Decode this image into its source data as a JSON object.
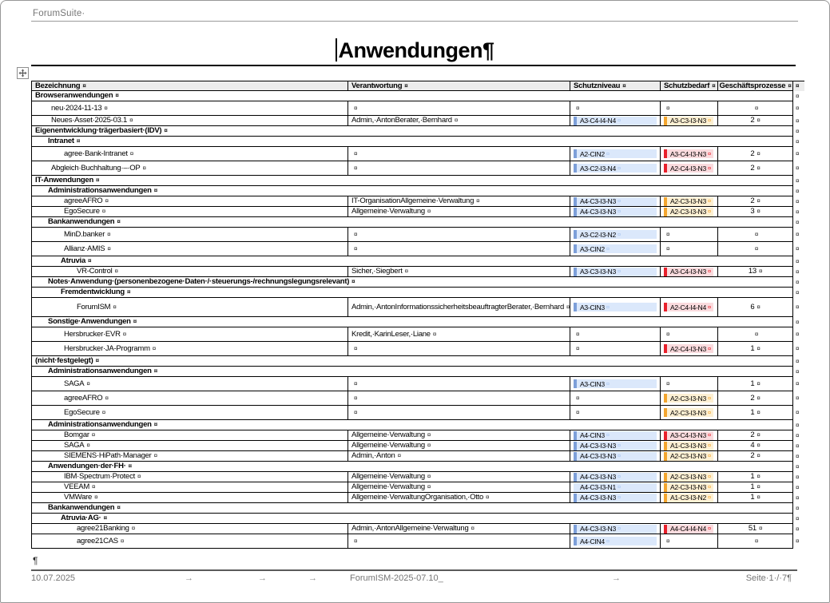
{
  "app": {
    "title": "ForumSuite·"
  },
  "doc": {
    "title": "Anwendungen",
    "title_mark": "¶",
    "empty_paragraph_mark": "¶",
    "cell_end_mark": "¤",
    "row_end_mark": "¤",
    "table": {
      "columns": [
        "Bezeichnung",
        "Verantwortung",
        "Schutzniveau",
        "Schutzbedarf",
        "Geschäftsprozesse"
      ],
      "rows": [
        {
          "kind": "group",
          "level": 0,
          "size": "s",
          "name": "Browseranwendungen"
        },
        {
          "kind": "item",
          "level": 1,
          "size": "m",
          "name": "neu·2024-11-13",
          "verantwortung": "",
          "schutzniveau": null,
          "schutzbedarf": null,
          "prozesse": ""
        },
        {
          "kind": "item",
          "level": 1,
          "size": "s",
          "name": "Neues·Asset·2025-03.1",
          "verantwortung": "Admin,·AntonBerater,·Bernhard",
          "schutzniveau": {
            "value": "A3-C4-I4-N4",
            "strip": true
          },
          "schutzbedarf": {
            "value": "A3-C3-I3-N3",
            "severity": "orange"
          },
          "prozesse": "2"
        },
        {
          "kind": "group",
          "level": 0,
          "size": "s",
          "name": "Eigenentwicklung·trägerbasiert·(IDV)"
        },
        {
          "kind": "group",
          "level": 1,
          "size": "s",
          "name": "Intranet"
        },
        {
          "kind": "item",
          "level": 2,
          "size": "m",
          "name": "agree·Bank-Intranet",
          "verantwortung": "",
          "schutzniveau": {
            "value": "A2-CIN2",
            "strip": true
          },
          "schutzbedarf": {
            "value": "A3-C4-I3-N3",
            "severity": "red"
          },
          "prozesse": "2"
        },
        {
          "kind": "item",
          "level": 1,
          "size": "m",
          "name": "Abgleich·Buchhaltung·–·OP",
          "verantwortung": "",
          "schutzniveau": {
            "value": "A3-C2-I3-N4",
            "strip": true
          },
          "schutzbedarf": {
            "value": "A2-C4-I3-N3",
            "severity": "red"
          },
          "prozesse": "2"
        },
        {
          "kind": "group",
          "level": 0,
          "size": "s",
          "name": "IT-Anwendungen"
        },
        {
          "kind": "group",
          "level": 1,
          "size": "s",
          "name": "Administrationsanwendungen"
        },
        {
          "kind": "item",
          "level": 2,
          "size": "s",
          "name": "agreeAFRO",
          "verantwortung": "IT-OrganisationAllgemeine·Verwaltung",
          "schutzniveau": {
            "value": "A4-C3-I3-N3",
            "strip": true
          },
          "schutzbedarf": {
            "value": "A2-C3-I3-N3",
            "severity": "orange"
          },
          "prozesse": "2"
        },
        {
          "kind": "item",
          "level": 2,
          "size": "s",
          "name": "EgoSecure",
          "verantwortung": "Allgemeine·Verwaltung",
          "schutzniveau": {
            "value": "A4-C3-I3-N3",
            "strip": true
          },
          "schutzbedarf": {
            "value": "A2-C3-I3-N3",
            "severity": "orange"
          },
          "prozesse": "3"
        },
        {
          "kind": "group",
          "level": 1,
          "size": "s",
          "name": "Bankanwendungen"
        },
        {
          "kind": "item",
          "level": 2,
          "size": "m",
          "name": "MinD.banker",
          "verantwortung": "",
          "schutzniveau": {
            "value": "A3-C2-I3-N2",
            "strip": true
          },
          "schutzbedarf": null,
          "prozesse": ""
        },
        {
          "kind": "item",
          "level": 2,
          "size": "m",
          "name": "Allianz·AMIS",
          "verantwortung": "",
          "schutzniveau": {
            "value": "A3-CIN2",
            "strip": true
          },
          "schutzbedarf": null,
          "prozesse": ""
        },
        {
          "kind": "group",
          "level": 2,
          "size": "s",
          "name": "Atruvia"
        },
        {
          "kind": "item",
          "level": 3,
          "size": "s",
          "name": "VR-Control",
          "verantwortung": "Sicher,·Siegbert",
          "schutzniveau": {
            "value": "A3-C3-I3-N3",
            "strip": true
          },
          "schutzbedarf": {
            "value": "A3-C4-I3-N3",
            "severity": "red"
          },
          "prozesse": "13"
        },
        {
          "kind": "group",
          "level": 1,
          "size": "s",
          "name": "Notes·Anwendung·(personenbezogene·Daten·/·steuerungs-/rechnungslegungsrelevant)"
        },
        {
          "kind": "group",
          "level": 2,
          "size": "s",
          "name": "Fremdentwicklung"
        },
        {
          "kind": "item",
          "level": 3,
          "size": "l",
          "name": "ForumISM",
          "verantwortung": "Admin,·AntonInformationssicherheitsbeauftragterBerater,·Bernhard",
          "schutzniveau": {
            "value": "A3-CIN3",
            "strip": true
          },
          "schutzbedarf": {
            "value": "A2-C4-I4-N4",
            "severity": "red"
          },
          "prozesse": "6"
        },
        {
          "kind": "group",
          "level": 1,
          "size": "s",
          "name": "Sonstige·Anwendungen"
        },
        {
          "kind": "item",
          "level": 2,
          "size": "m",
          "name": "Hersbrucker·EVR",
          "verantwortung": "Kredit,·KarinLeser,·Liane",
          "schutzniveau": null,
          "schutzbedarf": null,
          "prozesse": ""
        },
        {
          "kind": "item",
          "level": 2,
          "size": "m",
          "name": "Hersbrucker·JA-Programm",
          "verantwortung": "",
          "schutzniveau": null,
          "schutzbedarf": {
            "value": "A2-C4-I3-N3",
            "severity": "red"
          },
          "prozesse": "1"
        },
        {
          "kind": "group",
          "level": 0,
          "size": "s",
          "name": "(nicht·festgelegt)"
        },
        {
          "kind": "group",
          "level": 1,
          "size": "s",
          "name": "Administrationsanwendungen"
        },
        {
          "kind": "item",
          "level": 2,
          "size": "m",
          "name": "SAGA",
          "verantwortung": "",
          "schutzniveau": {
            "value": "A3-CIN3",
            "strip": true
          },
          "schutzbedarf": null,
          "prozesse": "1"
        },
        {
          "kind": "item",
          "level": 2,
          "size": "m",
          "name": "agreeAFRO",
          "verantwortung": "",
          "schutzniveau": null,
          "schutzbedarf": {
            "value": "A2-C3-I3-N3",
            "severity": "orange"
          },
          "prozesse": "2"
        },
        {
          "kind": "item",
          "level": 2,
          "size": "m",
          "name": "EgoSecure",
          "verantwortung": "",
          "schutzniveau": null,
          "schutzbedarf": {
            "value": "A2-C3-I3-N3",
            "severity": "orange"
          },
          "prozesse": "1"
        },
        {
          "kind": "group",
          "level": 1,
          "size": "s",
          "name": "Administrationsanwendungen"
        },
        {
          "kind": "item",
          "level": 2,
          "size": "s",
          "name": "Bomgar",
          "verantwortung": "Allgemeine·Verwaltung",
          "schutzniveau": {
            "value": "A4-CIN3",
            "strip": true
          },
          "schutzbedarf": {
            "value": "A3-C4-I3-N3",
            "severity": "red"
          },
          "prozesse": "2"
        },
        {
          "kind": "item",
          "level": 2,
          "size": "s",
          "name": "SAGA",
          "verantwortung": "Allgemeine·Verwaltung",
          "schutzniveau": {
            "value": "A4-C3-I3-N3",
            "strip": true
          },
          "schutzbedarf": {
            "value": "A1-C3-I3-N3",
            "severity": "orange"
          },
          "prozesse": "4"
        },
        {
          "kind": "item",
          "level": 2,
          "size": "s",
          "name": "SIEMENS·HiPath·Manager",
          "verantwortung": "Admin,·Anton",
          "schutzniveau": {
            "value": "A4-C3-I3-N3",
            "strip": true
          },
          "schutzbedarf": {
            "value": "A2-C3-I3-N3",
            "severity": "orange"
          },
          "prozesse": "2"
        },
        {
          "kind": "group",
          "level": 1,
          "size": "s",
          "name": "Anwendungen·der·FH·"
        },
        {
          "kind": "item",
          "level": 2,
          "size": "s",
          "name": "IBM·Spectrum·Protect",
          "verantwortung": "Allgemeine·Verwaltung",
          "schutzniveau": {
            "value": "A4-C3-I3-N3",
            "strip": true
          },
          "schutzbedarf": {
            "value": "A2-C3-I3-N3",
            "severity": "orange"
          },
          "prozesse": "1"
        },
        {
          "kind": "item",
          "level": 2,
          "size": "s",
          "name": "VEEAM",
          "verantwortung": "Allgemeine·Verwaltung",
          "schutzniveau": {
            "value": "A4-C3-I3-N1",
            "strip": false
          },
          "schutzbedarf": {
            "value": "A2-C3-I3-N3",
            "severity": "orange"
          },
          "prozesse": "1"
        },
        {
          "kind": "item",
          "level": 2,
          "size": "s",
          "name": "VMWare",
          "verantwortung": "Allgemeine·VerwaltungOrganisation,·Otto",
          "schutzniveau": {
            "value": "A4-C3-I3-N3",
            "strip": true
          },
          "schutzbedarf": {
            "value": "A1-C3-I3-N2",
            "severity": "orange"
          },
          "prozesse": "1"
        },
        {
          "kind": "group",
          "level": 1,
          "size": "s",
          "name": "Bankanwendungen"
        },
        {
          "kind": "group",
          "level": 2,
          "size": "s",
          "name": "Atruvia·AG·"
        },
        {
          "kind": "item",
          "level": 3,
          "size": "s",
          "name": "agree21Banking",
          "verantwortung": "Admin,·AntonAllgemeine·Verwaltung",
          "schutzniveau": {
            "value": "A4-C3-I3-N3",
            "strip": true
          },
          "schutzbedarf": {
            "value": "A4-C4-I4-N4",
            "severity": "red"
          },
          "prozesse": "51"
        },
        {
          "kind": "item",
          "level": 3,
          "size": "m",
          "name": "agree21CAS",
          "verantwortung": "",
          "schutzniveau": {
            "value": "A4-CIN4",
            "strip": true
          },
          "schutzbedarf": null,
          "prozesse": ""
        }
      ]
    }
  },
  "footer": {
    "date": "10.07.2025",
    "tab_mark": "→",
    "filename": "ForumISM-2025-07.10_",
    "page_label": "Seite·1·/·7",
    "page_mark": "¶"
  },
  "colors": {
    "muted_text": "#767676",
    "header_bg": "#ececec",
    "niveau_fill": "#dbe8fb",
    "niveau_strip": "#7d9fd9",
    "niveau_mark": "#a9c6f0",
    "bedarf_orange_fill": "#fdf0d3",
    "bedarf_orange_strip": "#f3a52e",
    "bedarf_red_fill": "#fadbde",
    "bedarf_red_strip": "#e8202b"
  }
}
